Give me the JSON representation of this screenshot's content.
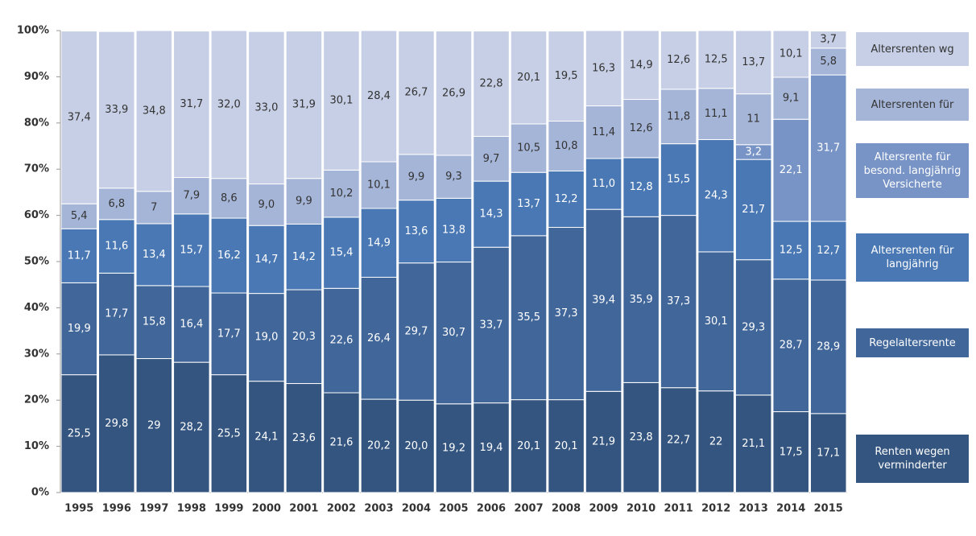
{
  "chart_data": {
    "type": "stacked_bar",
    "categories": [
      "1995",
      "1996",
      "1997",
      "1998",
      "1999",
      "2000",
      "2001",
      "2002",
      "2003",
      "2004",
      "2005",
      "2006",
      "2007",
      "2008",
      "2009",
      "2010",
      "2011",
      "2012",
      "2013",
      "2014",
      "2015"
    ],
    "ylim": [
      0,
      100
    ],
    "yticks": [
      {
        "value": 0,
        "label": "0%"
      },
      {
        "value": 10,
        "label": "10%"
      },
      {
        "value": 20,
        "label": "20%"
      },
      {
        "value": 30,
        "label": "30%"
      },
      {
        "value": 40,
        "label": "40%"
      },
      {
        "value": 50,
        "label": "50%"
      },
      {
        "value": 60,
        "label": "60%"
      },
      {
        "value": 70,
        "label": "70%"
      },
      {
        "value": 80,
        "label": "80%"
      },
      {
        "value": 90,
        "label": "90%"
      },
      {
        "value": 100,
        "label": "100%"
      }
    ],
    "series": [
      {
        "name": "Renten wegen verminderter",
        "color": "#34557f",
        "values": [
          25.5,
          29.8,
          29,
          28.2,
          25.5,
          24.1,
          23.6,
          21.6,
          20.2,
          20.0,
          19.2,
          19.4,
          20.1,
          20.1,
          21.9,
          23.8,
          22.7,
          22,
          21.1,
          17.5,
          17.1
        ],
        "value_labels": [
          "25,5",
          "29,8",
          "29",
          "28,2",
          "25,5",
          "24,1",
          "23,6",
          "21,6",
          "20,2",
          "20,0",
          "19,2",
          "19,4",
          "20,1",
          "20,1",
          "21,9",
          "23,8",
          "22,7",
          "22",
          "21,1",
          "17,5",
          "17,1"
        ]
      },
      {
        "name": "Regelaltersrente",
        "color": "#41669a",
        "values": [
          19.9,
          17.7,
          15.8,
          16.4,
          17.7,
          19.0,
          20.3,
          22.6,
          26.4,
          29.7,
          30.7,
          33.7,
          35.5,
          37.3,
          39.4,
          35.9,
          37.3,
          30.1,
          29.3,
          28.7,
          28.9
        ],
        "value_labels": [
          "19,9",
          "17,7",
          "15,8",
          "16,4",
          "17,7",
          "19,0",
          "20,3",
          "22,6",
          "26,4",
          "29,7",
          "30,7",
          "33,7",
          "35,5",
          "37,3",
          "39,4",
          "35,9",
          "37,3",
          "30,1",
          "29,3",
          "28,7",
          "28,9"
        ]
      },
      {
        "name": "Altersrenten für langjährig",
        "color": "#4a78b4",
        "values": [
          11.7,
          11.6,
          13.4,
          15.7,
          16.2,
          14.7,
          14.2,
          15.4,
          14.9,
          13.6,
          13.8,
          14.3,
          13.7,
          12.2,
          11.0,
          12.8,
          15.5,
          24.3,
          21.7,
          12.5,
          12.7
        ],
        "value_labels": [
          "11,7",
          "11,6",
          "13,4",
          "15,7",
          "16,2",
          "14,7",
          "14,2",
          "15,4",
          "14,9",
          "13,6",
          "13,8",
          "14,3",
          "13,7",
          "12,2",
          "11,0",
          "12,8",
          "15,5",
          "24,3",
          "21,7",
          "12,5",
          "12,7"
        ]
      },
      {
        "name": "Altersrente für besond. langjährig Versicherte",
        "color": "#7894c6",
        "values": [
          null,
          null,
          null,
          null,
          null,
          null,
          null,
          null,
          null,
          null,
          null,
          null,
          null,
          null,
          null,
          null,
          null,
          null,
          3.2,
          22.1,
          31.7
        ],
        "value_labels": [
          null,
          null,
          null,
          null,
          null,
          null,
          null,
          null,
          null,
          null,
          null,
          null,
          null,
          null,
          null,
          null,
          null,
          null,
          "3,2",
          "22,1",
          "31,7"
        ]
      },
      {
        "name": "Altersrenten für",
        "color": "#a5b5d8",
        "values": [
          5.4,
          6.8,
          7,
          7.9,
          8.6,
          9.0,
          9.9,
          10.2,
          10.1,
          9.9,
          9.3,
          9.7,
          10.5,
          10.8,
          11.4,
          12.6,
          11.8,
          11.1,
          11,
          9.1,
          5.8
        ],
        "value_labels": [
          "5,4",
          "6,8",
          "7",
          "7,9",
          "8,6",
          "9,0",
          "9,9",
          "10,2",
          "10,1",
          "9,9",
          "9,3",
          "9,7",
          "10,5",
          "10,8",
          "11,4",
          "12,6",
          "11,8",
          "11,1",
          "11",
          "9,1",
          "5,8"
        ]
      },
      {
        "name": "Altersrenten wg",
        "color": "#c6cfe5",
        "values": [
          37.4,
          33.9,
          34.8,
          31.7,
          32.0,
          33.0,
          31.9,
          30.1,
          28.4,
          26.7,
          26.9,
          22.8,
          20.1,
          19.5,
          16.3,
          14.9,
          12.6,
          12.5,
          13.7,
          10.1,
          3.7
        ],
        "value_labels": [
          "37,4",
          "33,9",
          "34,8",
          "31,7",
          "32,0",
          "33,0",
          "31,9",
          "30,1",
          "28,4",
          "26,7",
          "26,9",
          "22,8",
          "20,1",
          "19,5",
          "16,3",
          "14,9",
          "12,6",
          "12,5",
          "13,7",
          "10,1",
          "3,7"
        ]
      }
    ]
  }
}
